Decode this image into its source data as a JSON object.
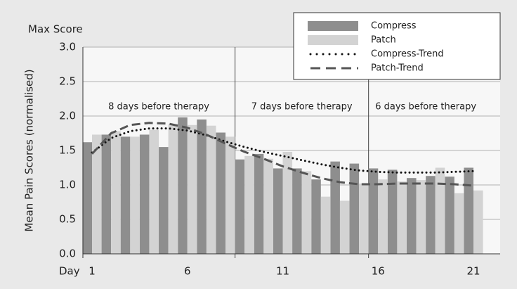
{
  "chart_data": {
    "type": "bar",
    "title": "Max Score",
    "x_label": "Day",
    "y_label": "Mean Pain Scores (normalised)",
    "annotations": [
      "8 days before therapy",
      "7 days before therapy",
      "6 days before therapy"
    ],
    "categories": [
      "1",
      null,
      null,
      null,
      null,
      "6",
      null,
      null,
      null,
      null,
      "11",
      null,
      null,
      null,
      null,
      "16",
      null,
      null,
      null,
      null,
      "21"
    ],
    "series": [
      {
        "name": "Compress",
        "type": "bar",
        "color": "#8e8e8e",
        "values": [
          1.62,
          1.73,
          1.7,
          1.73,
          1.55,
          1.98,
          1.95,
          1.76,
          1.37,
          1.45,
          1.24,
          1.24,
          1.08,
          1.34,
          1.31,
          1.24,
          1.22,
          1.1,
          1.13,
          1.12,
          1.25
        ]
      },
      {
        "name": "Patch",
        "type": "bar",
        "color": "#d3d3d3",
        "values": [
          1.73,
          1.78,
          1.7,
          1.8,
          1.88,
          1.87,
          1.86,
          1.7,
          1.42,
          1.38,
          1.48,
          1.2,
          0.83,
          0.77,
          1.02,
          1.08,
          1.05,
          1.07,
          1.25,
          0.88,
          0.92
        ]
      },
      {
        "name": "Compress-Trend",
        "type": "line",
        "style": "dotted",
        "color": "#111111",
        "values": [
          1.47,
          1.68,
          1.78,
          1.82,
          1.82,
          1.79,
          1.72,
          1.63,
          1.55,
          1.48,
          1.42,
          1.36,
          1.3,
          1.25,
          1.21,
          1.19,
          1.18,
          1.18,
          1.18,
          1.19,
          1.2
        ]
      },
      {
        "name": "Patch-Trend",
        "type": "line",
        "style": "dashed",
        "color": "#555555",
        "values": [
          1.45,
          1.75,
          1.87,
          1.9,
          1.89,
          1.83,
          1.73,
          1.6,
          1.48,
          1.38,
          1.27,
          1.18,
          1.1,
          1.04,
          1.01,
          1.01,
          1.02,
          1.02,
          1.02,
          1.01,
          0.99
        ]
      }
    ],
    "ylim": [
      0,
      3
    ],
    "yticks": [
      {
        "value": 0,
        "label": "0.0"
      },
      0.5,
      {
        "value": 1,
        "label": "1.0"
      },
      1.5,
      {
        "value": 2,
        "label": "2.0"
      },
      2.5,
      {
        "value": 3,
        "label": "3.0"
      }
    ],
    "grid": true,
    "legend": "top-right"
  }
}
